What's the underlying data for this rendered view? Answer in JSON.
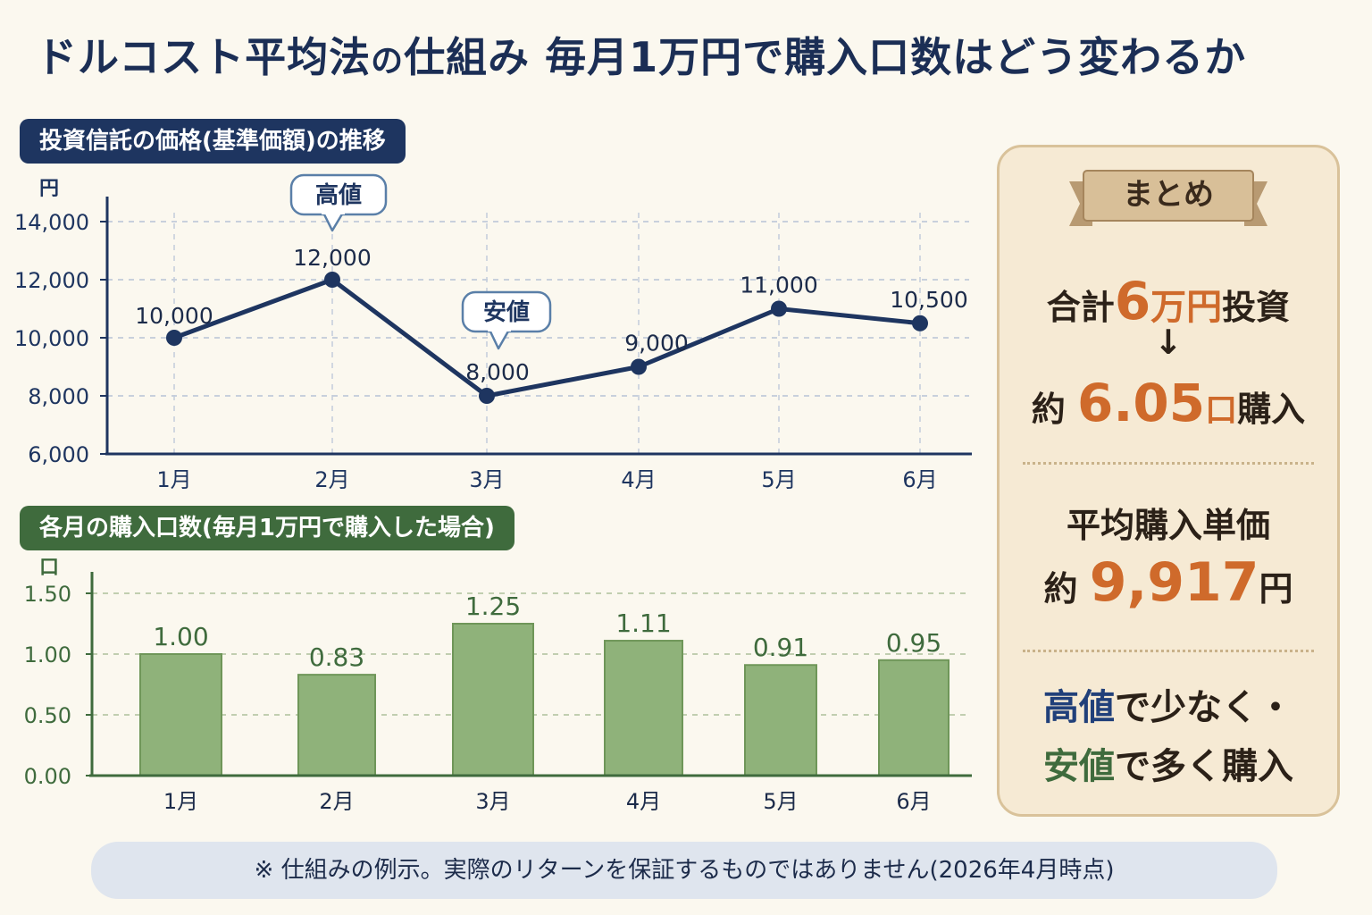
{
  "title": {
    "part1": "ドルコスト平均法",
    "part2": "の",
    "part3": "仕組み 毎月1万円で購入口数はどう変わるか"
  },
  "line_section": {
    "heading": "投資信託の価格(基準価額)の推移",
    "high_callout": "高値",
    "low_callout": "安値"
  },
  "bar_section": {
    "heading": "各月の購入口数(毎月1万円で購入した場合)"
  },
  "summary": {
    "ribbon": "まとめ",
    "total_prefix": "合計",
    "total_value": "6",
    "total_unit": "万円",
    "total_suffix": "投資",
    "arrow": "↓",
    "units_prefix": "約",
    "units_value": "6.05",
    "units_unit": "口",
    "units_suffix": "購入",
    "avg_label": "平均購入単価",
    "avg_prefix": "約",
    "avg_value": "9,917",
    "avg_unit": "円",
    "msg_high": "高値",
    "msg_line1_rest": "で少なく・",
    "msg_low": "安値",
    "msg_line2_rest": "で多く購入"
  },
  "footer": "※ 仕組みの例示。実際のリターンを保証するものではありません(2026年4月時点)",
  "colors": {
    "navy": "#1e3560",
    "green": "#3f6b3d",
    "bar_fill": "#8fb27a",
    "orange": "#cf6a2b",
    "cream": "#fbf8ef"
  },
  "chart_data": [
    {
      "type": "line",
      "categories": [
        "1月",
        "2月",
        "3月",
        "4月",
        "5月",
        "6月"
      ],
      "values": [
        10000,
        12000,
        8000,
        9000,
        11000,
        10500
      ],
      "data_labels": [
        "10,000",
        "12,000",
        "8,000",
        "9,000",
        "11,000",
        "10,500"
      ],
      "ylabel": "円",
      "yticks": [
        "6,000",
        "8,000",
        "10,000",
        "12,000",
        "14,000"
      ],
      "ytick_values": [
        6000,
        8000,
        10000,
        12000,
        14000
      ],
      "ylim": [
        6000,
        14000
      ],
      "grid": true
    },
    {
      "type": "bar",
      "categories": [
        "1月",
        "2月",
        "3月",
        "4月",
        "5月",
        "6月"
      ],
      "values": [
        1.0,
        0.83,
        1.25,
        1.11,
        0.91,
        0.95
      ],
      "data_labels": [
        "1.00",
        "0.83",
        "1.25",
        "1.11",
        "0.91",
        "0.95"
      ],
      "ylabel": "口",
      "yticks": [
        "0.00",
        "0.50",
        "1.00",
        "1.50"
      ],
      "ytick_values": [
        0,
        0.5,
        1.0,
        1.5
      ],
      "ylim": [
        0,
        1.5
      ],
      "grid": true
    }
  ]
}
